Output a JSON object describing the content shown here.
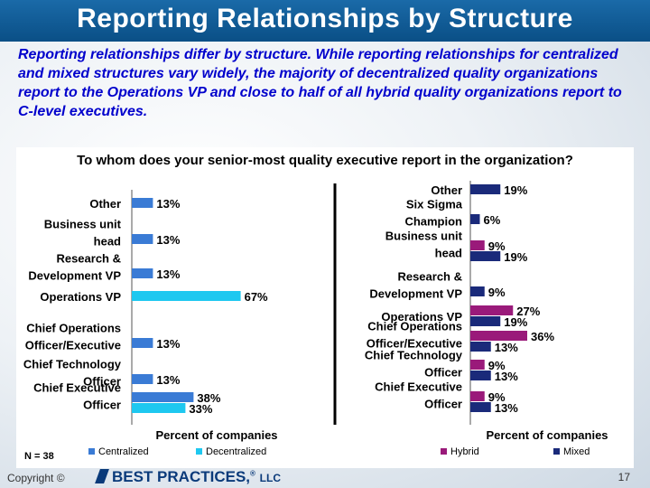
{
  "header": {
    "title": "Reporting Relationships by Structure"
  },
  "intro": "Reporting relationships differ by structure. While reporting relationships for centralized and mixed structures vary widely, the majority of decentralized quality organizations report to the Operations VP and close to half of all hybrid quality organizations report to C-level executives.",
  "question": "To whom does your senior-most quality executive report in the organization?",
  "sample": "N = 38",
  "colors": {
    "centralized": "#3a7bd5",
    "decentralized": "#1ec8f0",
    "hybrid": "#9a1a7a",
    "mixed": "#1a2a7a"
  },
  "chart_data": [
    {
      "type": "bar",
      "orientation": "horizontal",
      "categories": [
        "Other",
        "Business unit head",
        "Research & Development VP",
        "Operations VP",
        "Chief Operations Officer/Executive",
        "Chief Technology Officer",
        "Chief Executive Officer"
      ],
      "category_lines": [
        [
          "Other"
        ],
        [
          "Business unit",
          "head"
        ],
        [
          "Research &",
          "Development VP"
        ],
        [
          "Operations VP"
        ],
        [
          "Chief Operations",
          "Officer/Executive"
        ],
        [
          "Chief Technology",
          "Officer"
        ],
        [
          "Chief Executive",
          "Officer"
        ]
      ],
      "series": [
        {
          "name": "Centralized",
          "values": [
            13,
            13,
            13,
            null,
            13,
            13,
            38
          ]
        },
        {
          "name": "Decentralized",
          "values": [
            null,
            null,
            null,
            67,
            null,
            null,
            33
          ]
        }
      ],
      "xlabel": "Percent of companies",
      "xlim": [
        0,
        100
      ]
    },
    {
      "type": "bar",
      "orientation": "horizontal",
      "categories": [
        "Other",
        "Six Sigma Champion",
        "Business unit head",
        "Research & Development VP",
        "Operations VP",
        "Chief Operations Officer/Executive",
        "Chief Technology Officer",
        "Chief Executive Officer"
      ],
      "category_lines": [
        [
          "Other"
        ],
        [
          "Six Sigma",
          "Champion"
        ],
        [
          "Business unit",
          "head"
        ],
        [
          "Research &",
          "Development VP"
        ],
        [
          "Operations VP"
        ],
        [
          "Chief Operations",
          "Officer/Executive"
        ],
        [
          "Chief Technology",
          "Officer"
        ],
        [
          "Chief Executive",
          "Officer"
        ]
      ],
      "series": [
        {
          "name": "Hybrid",
          "values": [
            null,
            null,
            9,
            null,
            27,
            36,
            9,
            9
          ]
        },
        {
          "name": "Mixed",
          "values": [
            19,
            6,
            19,
            9,
            19,
            13,
            13,
            13
          ]
        }
      ],
      "xlabel": "Percent of companies",
      "xlim": [
        0,
        100
      ]
    }
  ]
}
